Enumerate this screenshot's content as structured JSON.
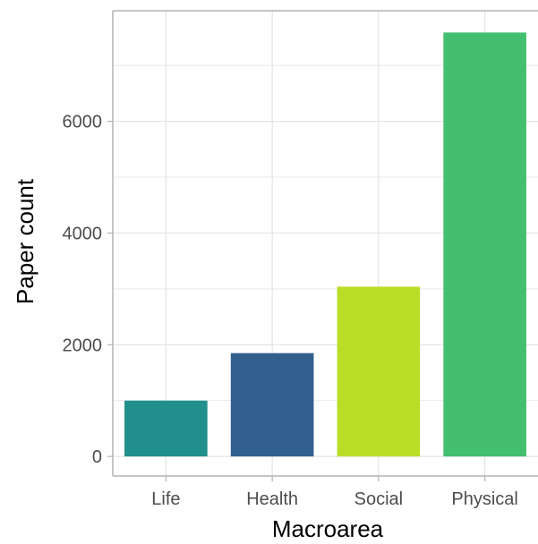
{
  "chart_data": {
    "type": "bar",
    "title": "",
    "xlabel": "Macroarea",
    "ylabel": "Paper count",
    "categories": [
      "Life",
      "Health",
      "Social",
      "Physical"
    ],
    "values": [
      1000,
      1850,
      3040,
      7590
    ],
    "colors": [
      "#21908C",
      "#31608F",
      "#BADE28",
      "#44BF70"
    ],
    "ylim": [
      -350,
      7980
    ],
    "yticks": [
      0,
      2000,
      4000,
      6000
    ],
    "ytick_labels": [
      "0",
      "2000",
      "4000",
      "6000"
    ],
    "grid": true,
    "grid_color": "#e3e3e3",
    "axis_color": "#b3b3b3",
    "background": "#ffffff",
    "legend": "none"
  }
}
